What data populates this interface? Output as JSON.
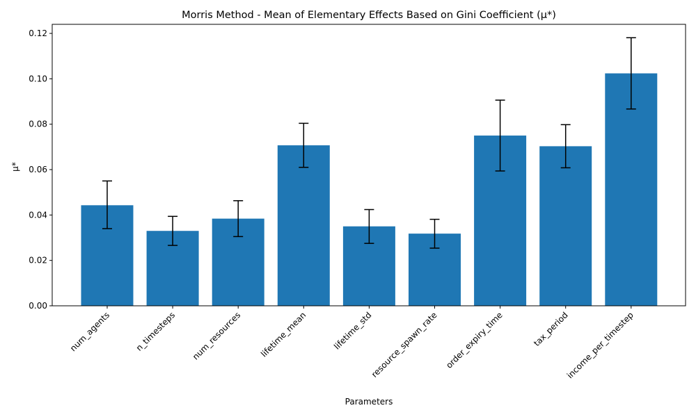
{
  "chart_data": {
    "type": "bar",
    "title": "Morris Method - Mean of Elementary Effects Based on Gini Coefficient (μ*)",
    "xlabel": "Parameters",
    "ylabel": "μ*",
    "categories": [
      "num_agents",
      "n_timesteps",
      "num_resources",
      "lifetime_mean",
      "lifetime_std",
      "resource_spawn_rate",
      "order_expiry_time",
      "tax_period",
      "income_per_timestep"
    ],
    "values": [
      0.0443,
      0.033,
      0.0384,
      0.0707,
      0.035,
      0.0318,
      0.075,
      0.0703,
      0.1024
    ],
    "error_low": [
      0.034,
      0.0266,
      0.0305,
      0.061,
      0.0275,
      0.0254,
      0.0594,
      0.0608,
      0.0867
    ],
    "error_high": [
      0.055,
      0.0394,
      0.0463,
      0.0804,
      0.0424,
      0.0381,
      0.0906,
      0.0798,
      0.1181
    ],
    "ylim": [
      0,
      0.124
    ],
    "yticks": [
      "0.00",
      "0.02",
      "0.04",
      "0.06",
      "0.08",
      "0.10",
      "0.12"
    ],
    "bar_color": "#1f77b4",
    "grid": false
  }
}
